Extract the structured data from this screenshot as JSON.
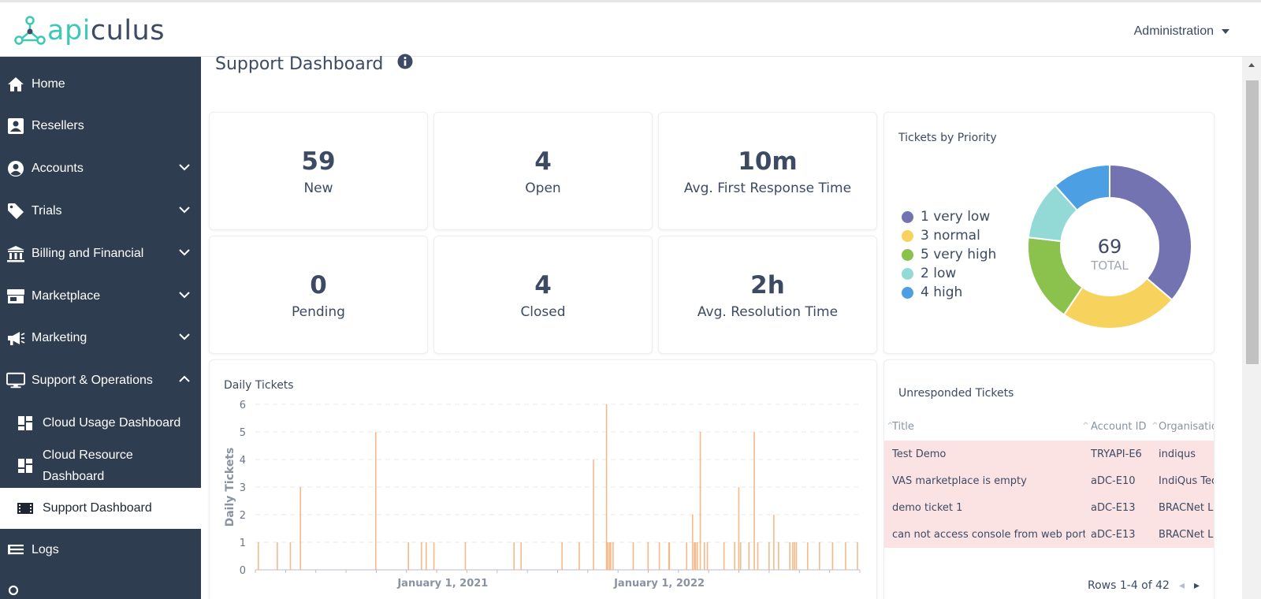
{
  "app": {
    "logo_prefix": "api",
    "logo_suffix": "culus",
    "user_menu_label": "Administration"
  },
  "sidebar": {
    "items": [
      {
        "label": "Home",
        "icon": "home-icon"
      },
      {
        "label": "Resellers",
        "icon": "reseller-icon"
      },
      {
        "label": "Accounts",
        "icon": "user-circle-icon",
        "expandable": true
      },
      {
        "label": "Trials",
        "icon": "tag-icon",
        "expandable": true
      },
      {
        "label": "Billing and Financial",
        "icon": "bank-icon",
        "expandable": true
      },
      {
        "label": "Marketplace",
        "icon": "store-icon",
        "expandable": true
      },
      {
        "label": "Marketing",
        "icon": "megaphone-icon",
        "expandable": true
      },
      {
        "label": "Support & Operations",
        "icon": "monitor-icon",
        "expandable": true,
        "expanded": true
      },
      {
        "label": "Cloud Usage Dashboard",
        "icon": "dashboard-icon",
        "sub": true
      },
      {
        "label": "Cloud Resource Dashboard",
        "icon": "dashboard-icon",
        "sub": true
      },
      {
        "label": "Support Dashboard",
        "icon": "film-icon",
        "sub": true,
        "active": true
      },
      {
        "label": "Logs",
        "icon": "list-icon"
      }
    ]
  },
  "page": {
    "title": "Support Dashboard"
  },
  "stats": [
    {
      "value": "59",
      "label": "New"
    },
    {
      "value": "4",
      "label": "Open"
    },
    {
      "value": "10m",
      "label": "Avg. First Response Time"
    },
    {
      "value": "0",
      "label": "Pending"
    },
    {
      "value": "4",
      "label": "Closed"
    },
    {
      "value": "2h",
      "label": "Avg. Resolution Time"
    }
  ],
  "colors": {
    "sidebar_bg": "#2e3d50",
    "accent": "#3ec8b5",
    "text": "#3d4a63",
    "bar": "#f5b98a",
    "row_highlight": "#fbe3e4"
  },
  "priority_chart": {
    "title": "Tickets by Priority",
    "total_value": "69",
    "total_label": "TOTAL",
    "chart_data": {
      "type": "pie",
      "title": "Tickets by Priority",
      "series": [
        {
          "name": "1 very low",
          "value": 25,
          "color": "#7473b2"
        },
        {
          "name": "3 normal",
          "value": 16,
          "color": "#f7d35e"
        },
        {
          "name": "5 very high",
          "value": 12,
          "color": "#8bc24e"
        },
        {
          "name": "2 low",
          "value": 8,
          "color": "#93dad7"
        },
        {
          "name": "4 high",
          "value": 8,
          "color": "#4d9fe3"
        }
      ]
    }
  },
  "daily_chart": {
    "title": "Daily Tickets",
    "ylabel": "Daily Tickets",
    "yticks": [
      "0",
      "1",
      "2",
      "3",
      "4",
      "5",
      "6"
    ],
    "xticks": [
      "January 1, 2021",
      "January 1, 2022"
    ],
    "chart_data": {
      "type": "bar",
      "title": "Daily Tickets",
      "ylabel": "Daily Tickets",
      "ylim": [
        0,
        6
      ],
      "x": [
        "2020-02-25",
        "2020-03-28",
        "2020-04-19",
        "2020-05-06",
        "2020-09-10",
        "2020-11-04",
        "2020-11-26",
        "2020-12-04",
        "2020-12-17",
        "2021-02-08",
        "2021-05-01",
        "2021-05-13",
        "2021-07-21",
        "2021-08-19",
        "2021-09-12",
        "2021-10-04",
        "2021-10-06",
        "2021-10-09",
        "2021-10-11",
        "2021-10-15",
        "2021-11-18",
        "2021-12-13",
        "2022-01-01",
        "2022-01-17",
        "2022-01-18",
        "2022-02-16",
        "2022-02-26",
        "2022-03-01",
        "2022-03-03",
        "2022-03-06",
        "2022-03-11",
        "2022-03-18",
        "2022-03-23",
        "2022-04-20",
        "2022-05-08",
        "2022-05-15",
        "2022-05-18",
        "2022-06-01",
        "2022-06-10",
        "2022-06-16",
        "2022-07-05",
        "2022-07-13",
        "2022-07-21",
        "2022-08-09",
        "2022-08-14",
        "2022-08-17",
        "2022-08-20",
        "2022-09-08",
        "2022-09-28",
        "2022-10-20",
        "2022-11-11",
        "2022-12-01"
      ],
      "values": [
        1,
        1,
        1,
        3,
        5,
        1,
        1,
        1,
        1,
        1,
        1,
        1,
        1,
        1,
        4,
        6,
        1,
        1,
        1,
        1,
        1,
        1,
        1,
        1,
        1,
        1,
        2,
        1,
        1,
        1,
        5,
        1,
        1,
        1,
        1,
        3,
        1,
        1,
        5,
        1,
        1,
        2,
        1,
        1,
        1,
        1,
        1,
        1,
        1,
        1,
        1,
        1
      ]
    }
  },
  "unresponded": {
    "title": "Unresponded Tickets",
    "columns": [
      "Title",
      "Account ID",
      "Organisatio"
    ],
    "rows": [
      {
        "title": "Test Demo",
        "account": "TRYAPI-E6",
        "org": "indiqus"
      },
      {
        "title": "VAS marketplace is empty",
        "account": "aDC-E10",
        "org": "IndiQus Tec"
      },
      {
        "title": "demo ticket 1",
        "account": "aDC-E13",
        "org": "BRACNet Li"
      },
      {
        "title": "can not access console from web portal",
        "account": "aDC-E13",
        "org": "BRACNet Li"
      }
    ],
    "pager": "Rows 1-4 of 42"
  }
}
